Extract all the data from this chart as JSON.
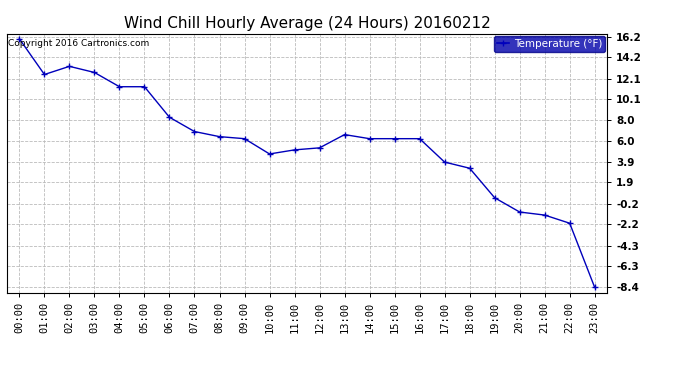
{
  "title": "Wind Chill Hourly Average (24 Hours) 20160212",
  "copyright_text": "Copyright 2016 Cartronics.com",
  "legend_label": "Temperature (°F)",
  "x_labels": [
    "00:00",
    "01:00",
    "02:00",
    "03:00",
    "04:00",
    "05:00",
    "06:00",
    "07:00",
    "08:00",
    "09:00",
    "10:00",
    "11:00",
    "12:00",
    "13:00",
    "14:00",
    "15:00",
    "16:00",
    "17:00",
    "18:00",
    "19:00",
    "20:00",
    "21:00",
    "22:00",
    "23:00"
  ],
  "y_values": [
    16.0,
    12.5,
    13.3,
    12.7,
    11.3,
    11.3,
    8.3,
    6.9,
    6.4,
    6.2,
    4.7,
    5.1,
    5.3,
    6.6,
    6.2,
    6.2,
    6.2,
    3.9,
    3.3,
    0.4,
    -1.0,
    -1.3,
    -2.1,
    -8.4
  ],
  "yticks": [
    16.2,
    14.2,
    12.1,
    10.1,
    8.0,
    6.0,
    3.9,
    1.9,
    -0.2,
    -2.2,
    -4.3,
    -6.3,
    -8.4
  ],
  "ymin": -8.4,
  "ymax": 16.2,
  "line_color": "#0000bb",
  "marker": "+",
  "marker_color": "#0000bb",
  "bg_color": "#ffffff",
  "plot_bg_color": "#ffffff",
  "grid_color": "#bbbbbb",
  "title_fontsize": 11,
  "tick_fontsize": 7.5,
  "copyright_fontsize": 6.5,
  "legend_bg": "#0000aa",
  "legend_text_color": "#ffffff",
  "legend_fontsize": 7.5
}
